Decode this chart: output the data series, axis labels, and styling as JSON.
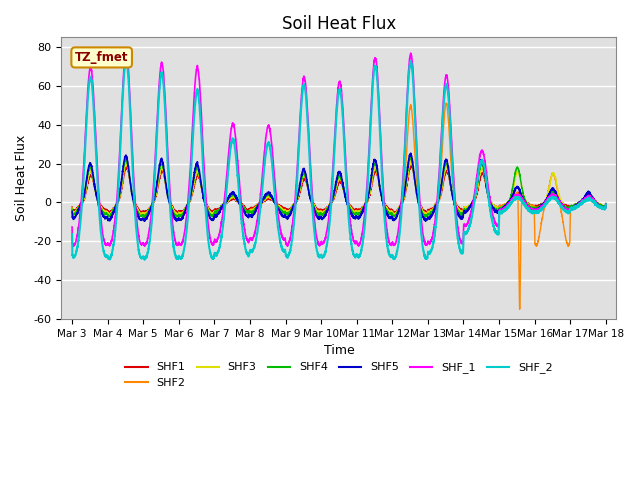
{
  "title": "Soil Heat Flux",
  "xlabel": "Time",
  "ylabel": "Soil Heat Flux",
  "xlim_days": [
    2.7,
    18.3
  ],
  "ylim": [
    -60,
    85
  ],
  "yticks": [
    -60,
    -40,
    -20,
    0,
    20,
    40,
    60,
    80
  ],
  "xtick_labels": [
    "Mar 3",
    "Mar 4",
    "Mar 5",
    "Mar 6",
    "Mar 7",
    "Mar 8",
    "Mar 9",
    "Mar 10",
    "Mar 11",
    "Mar 12",
    "Mar 13",
    "Mar 14",
    "Mar 15",
    "Mar 16",
    "Mar 17",
    "Mar 18"
  ],
  "xtick_positions": [
    3,
    4,
    5,
    6,
    7,
    8,
    9,
    10,
    11,
    12,
    13,
    14,
    15,
    16,
    17,
    18
  ],
  "annotation_text": "TZ_fmet",
  "annotation_box_color": "#FFFFCC",
  "annotation_border_color": "#CC8800",
  "series": {
    "SHF1": {
      "color": "#DD0000",
      "lw": 1.0
    },
    "SHF2": {
      "color": "#FF8800",
      "lw": 1.0
    },
    "SHF3": {
      "color": "#DDDD00",
      "lw": 1.0
    },
    "SHF4": {
      "color": "#00BB00",
      "lw": 1.0
    },
    "SHF5": {
      "color": "#0000CC",
      "lw": 1.2
    },
    "SHF_1": {
      "color": "#FF00FF",
      "lw": 1.2
    },
    "SHF_2": {
      "color": "#00CCCC",
      "lw": 1.5
    }
  },
  "legend_order": [
    "SHF1",
    "SHF2",
    "SHF3",
    "SHF4",
    "SHF5",
    "SHF_1",
    "SHF_2"
  ],
  "background_color": "#E8E8E8",
  "plot_bg_color": "#E0E0E0",
  "grid_color": "white",
  "title_fontsize": 12
}
